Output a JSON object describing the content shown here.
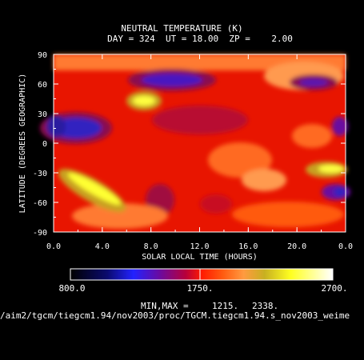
{
  "chart_data": {
    "type": "heatmap",
    "title": "NEUTRAL TEMPERATURE (K)",
    "subtitle": "DAY = 324  UT = 18.00  ZP =    2.00",
    "xlabel": "SOLAR LOCAL TIME (HOURS)",
    "ylabel": "LATITUDE (DEGREES GEOGRAPHIC)",
    "x_ticks": [
      "0.0",
      "4.0",
      "8.0",
      "12.0",
      "16.0",
      "20.0",
      "0.0"
    ],
    "y_ticks": [
      "90",
      "60",
      "30",
      "0",
      "-30",
      "-60",
      "-90"
    ],
    "xlim": [
      0,
      24
    ],
    "ylim": [
      -90,
      90
    ],
    "colorbar": {
      "min_label": "800.0",
      "mid_label": "1750.",
      "max_label": "2700.",
      "range": [
        800,
        2700
      ]
    },
    "minmax_label": "MIN,MAX =",
    "min_value": "1215.",
    "max_value": "2338.",
    "file_path": "/aim2/tgcm/tiegcm1.94/nov2003/proc/TGCM.tiegcm1.94.s_nov2003_weime",
    "features": [
      {
        "kind": "cold",
        "lt": 1.0,
        "lat": 18,
        "value": 1250
      },
      {
        "kind": "cold",
        "lt": 10.0,
        "lat": 62,
        "value": 1400
      },
      {
        "kind": "cold",
        "lt": 20.5,
        "lat": 58,
        "value": 1450
      },
      {
        "kind": "cold",
        "lt": 23.5,
        "lat": -38,
        "value": 1350
      },
      {
        "kind": "hot",
        "lt": 7.0,
        "lat": 45,
        "value": 2300
      },
      {
        "kind": "hot",
        "lt": 5.0,
        "lat": -45,
        "value": 2338
      },
      {
        "kind": "hot",
        "lt": 22.5,
        "lat": -25,
        "value": 2250
      }
    ]
  }
}
